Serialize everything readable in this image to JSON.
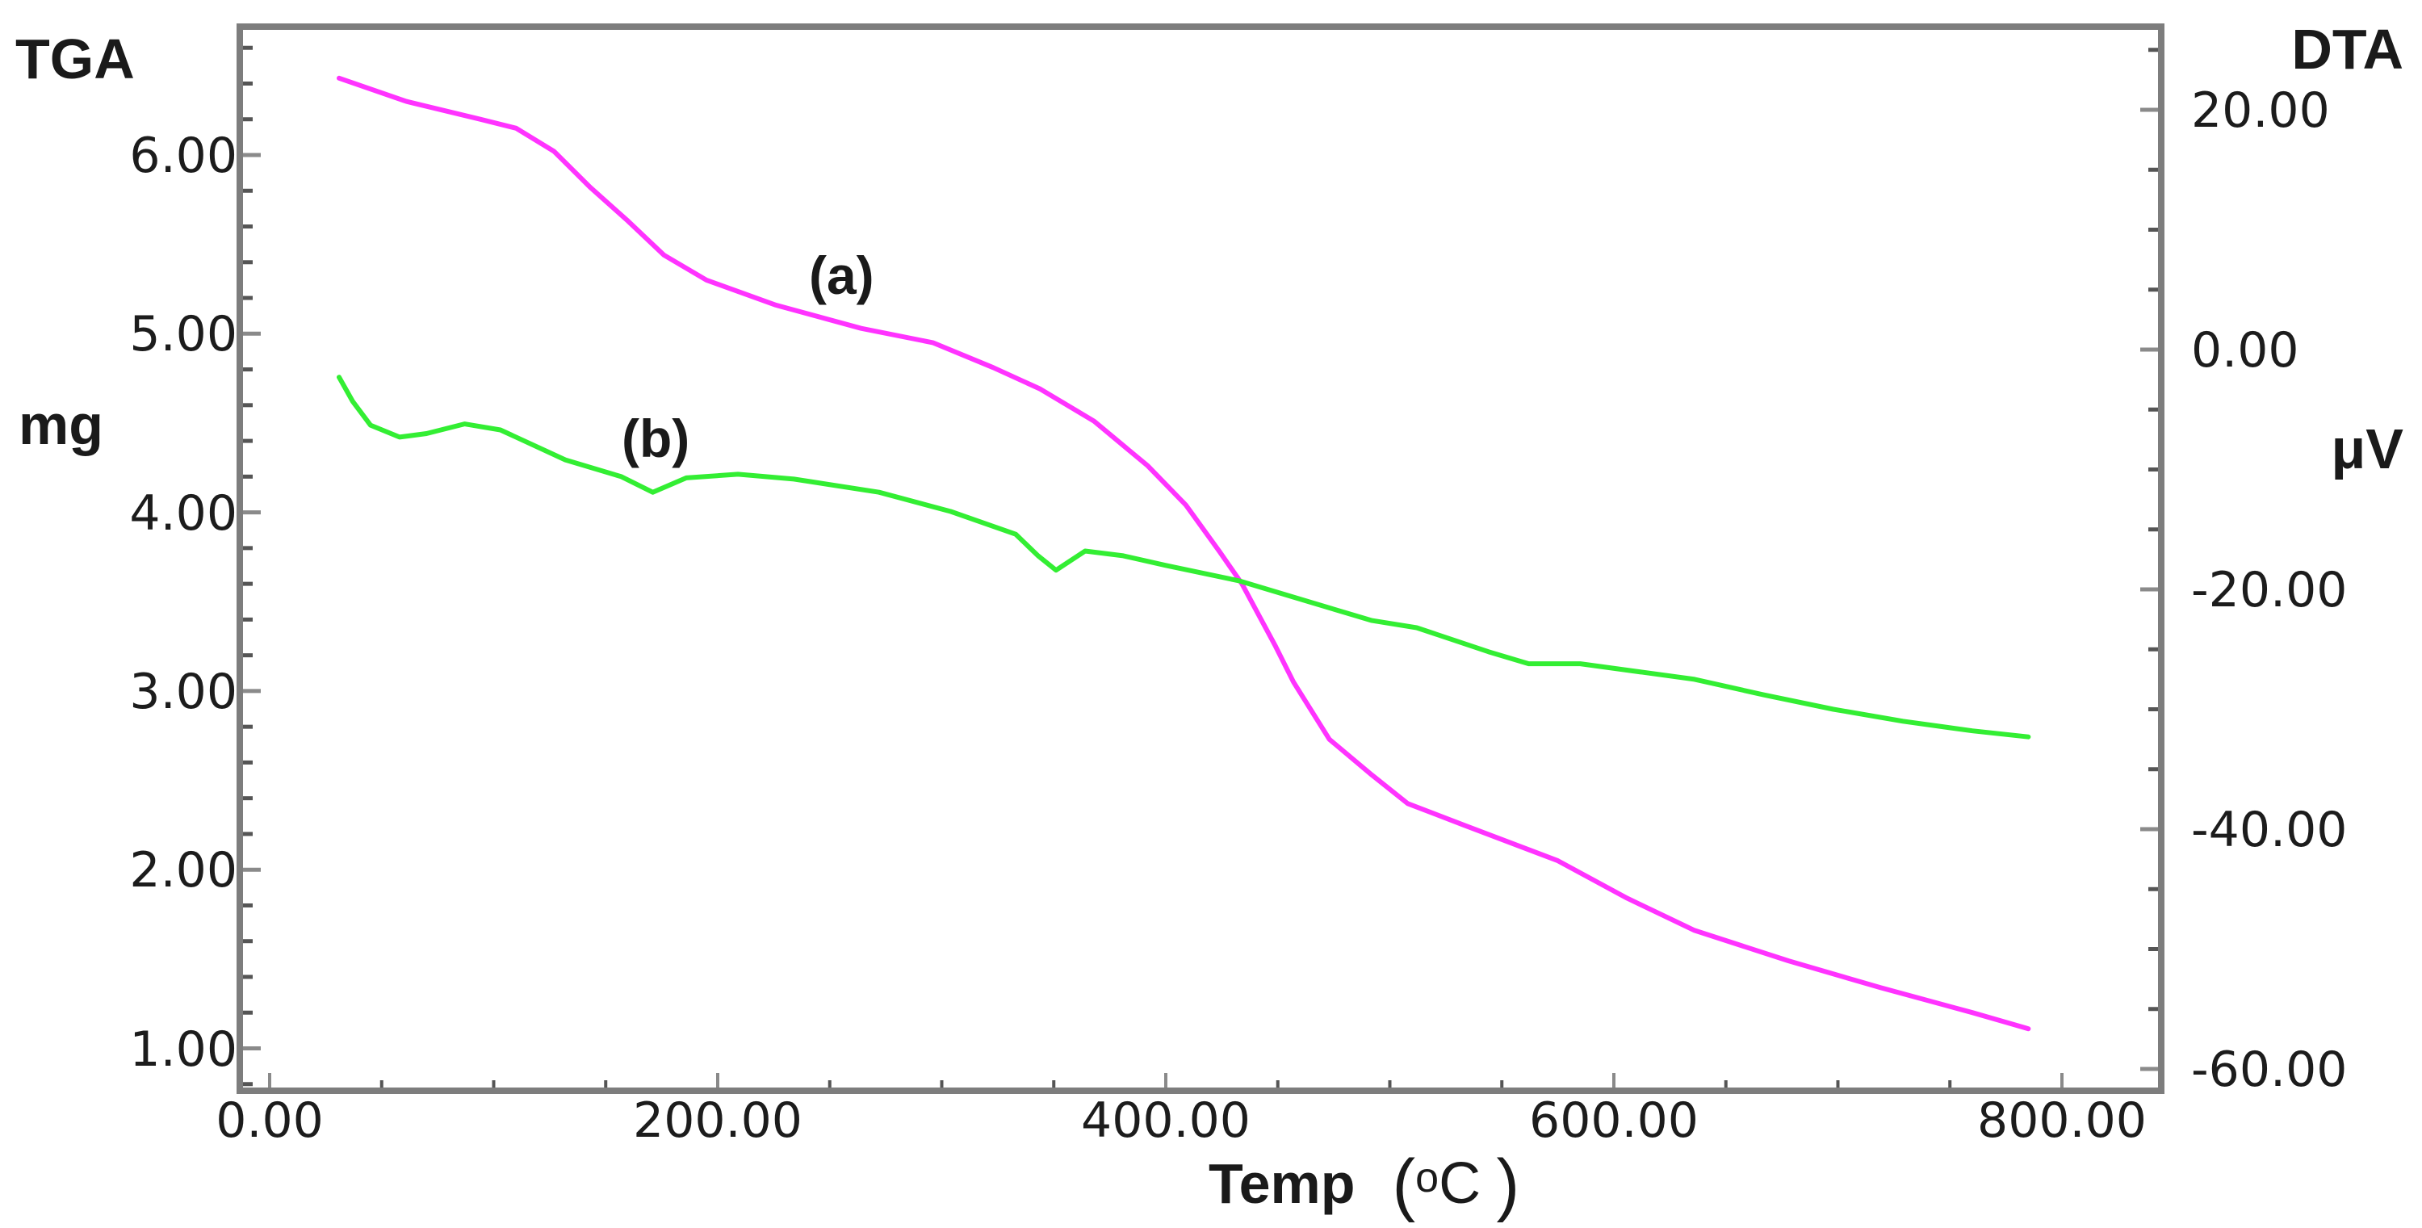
{
  "chart_data": {
    "type": "line",
    "title": "",
    "xlabel": "Temp (oC)",
    "ylabel_left": "TGA (mg)",
    "ylabel_right": "DTA (μV)",
    "grid": false,
    "legend": "none",
    "x_axis": {
      "label_main": "Temp",
      "label_paren_open": "(",
      "label_sup": "o",
      "label_unit": "C",
      "label_paren_close": ")",
      "range": [
        0,
        800
      ],
      "ticks": [
        0,
        200,
        400,
        600,
        800
      ],
      "tick_labels": [
        "0.00",
        "200.00",
        "400.00",
        "600.00",
        "800.00"
      ],
      "minor_step": 50
    },
    "y_left": {
      "title": "TGA",
      "unit": "mg",
      "range": [
        0.8,
        6.6
      ],
      "ticks": [
        1,
        2,
        3,
        4,
        5,
        6
      ],
      "tick_labels": [
        "1.00",
        "2.00",
        "3.00",
        "4.00",
        "5.00",
        "6.00"
      ],
      "minor_step": 0.2
    },
    "y_right": {
      "title": "DTA",
      "unit": "μV",
      "range": [
        -60,
        25
      ],
      "ticks": [
        -60,
        -40,
        -20,
        0,
        20
      ],
      "tick_labels": [
        "-60.00",
        "-40.00",
        "-20.00",
        "0.00",
        "20.00"
      ],
      "minor_step": 5
    },
    "series": [
      {
        "name": "(a)",
        "axis": "left",
        "color": "#ff33ff",
        "x": [
          31,
          61,
          94,
          110,
          127,
          143,
          160,
          176,
          195,
          226,
          264,
          296,
          323,
          344,
          368,
          392,
          409,
          424,
          434,
          449,
          457,
          473,
          492,
          508,
          533,
          575,
          606,
          636,
          678,
          719,
          760,
          785
        ],
        "y": [
          6.43,
          6.3,
          6.2,
          6.15,
          6.02,
          5.82,
          5.63,
          5.44,
          5.3,
          5.16,
          5.03,
          4.95,
          4.81,
          4.69,
          4.51,
          4.26,
          4.04,
          3.78,
          3.6,
          3.25,
          3.05,
          2.73,
          2.53,
          2.37,
          2.25,
          2.05,
          1.84,
          1.66,
          1.49,
          1.34,
          1.2,
          1.11
        ]
      },
      {
        "name": "(b)",
        "axis": "right",
        "color": "#33ee33",
        "x": [
          31,
          37,
          45,
          58,
          70,
          87,
          103,
          132,
          157,
          171,
          186,
          209,
          234,
          272,
          304,
          333,
          343,
          351,
          364,
          381,
          400,
          433,
          465,
          492,
          512,
          544,
          562,
          585,
          636,
          667,
          698,
          729,
          760,
          785
        ],
        "y": [
          -2.3,
          -4.3,
          -6.3,
          -7.3,
          -7.0,
          -6.2,
          -6.7,
          -9.2,
          -10.6,
          -11.9,
          -10.7,
          -10.4,
          -10.8,
          -11.9,
          -13.5,
          -15.4,
          -17.2,
          -18.4,
          -16.8,
          -17.2,
          -18.0,
          -19.3,
          -21.1,
          -22.6,
          -23.2,
          -25.2,
          -26.2,
          -26.2,
          -27.5,
          -28.8,
          -30.0,
          -31.0,
          -31.8,
          -32.3
        ]
      }
    ],
    "annotations": [
      {
        "text": "(a)",
        "series": "(a)"
      },
      {
        "text": "(b)",
        "series": "(b)"
      }
    ]
  }
}
